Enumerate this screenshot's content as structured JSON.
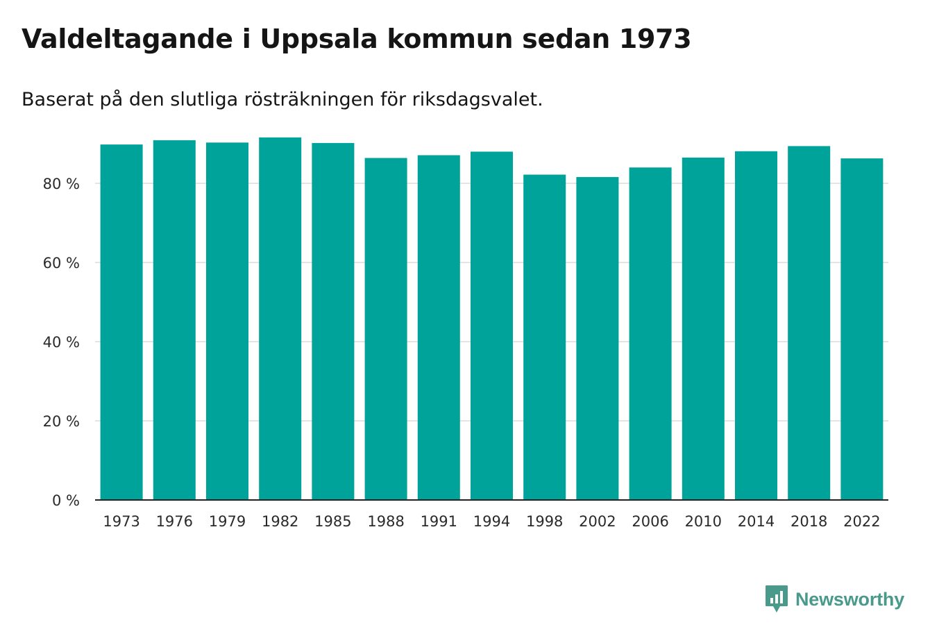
{
  "title": "Valdeltagande i Uppsala kommun sedan 1973",
  "subtitle": "Baserat på den slutliga rösträkningen för riksdagsvalet.",
  "brand": {
    "name": "Newsworthy",
    "icon": "newsworthy-logo-icon",
    "color": "#4a9a8c"
  },
  "colors": {
    "bar": "#00a39a",
    "grid": "#dcdcdc",
    "axis": "#222222",
    "text": "#151515"
  },
  "chart_data": {
    "type": "bar",
    "title": "Valdeltagande i Uppsala kommun sedan 1973",
    "subtitle": "Baserat på den slutliga rösträkningen för riksdagsvalet.",
    "xlabel": "",
    "ylabel": "",
    "categories": [
      "1973",
      "1976",
      "1979",
      "1982",
      "1985",
      "1988",
      "1991",
      "1994",
      "1998",
      "2002",
      "2006",
      "2010",
      "2014",
      "2018",
      "2022"
    ],
    "series": [
      {
        "values": [
          89.8,
          90.9,
          90.3,
          91.6,
          90.2,
          86.4,
          87.1,
          88.0,
          82.2,
          81.6,
          84.0,
          86.5,
          88.1,
          89.4,
          86.3
        ]
      }
    ],
    "yticks": [
      0,
      20,
      40,
      60,
      80
    ],
    "ytick_labels": [
      "0 %",
      "20 %",
      "40 %",
      "60 %",
      "80 %"
    ],
    "ylim": [
      0,
      100
    ],
    "grid": true,
    "legend": "none"
  }
}
